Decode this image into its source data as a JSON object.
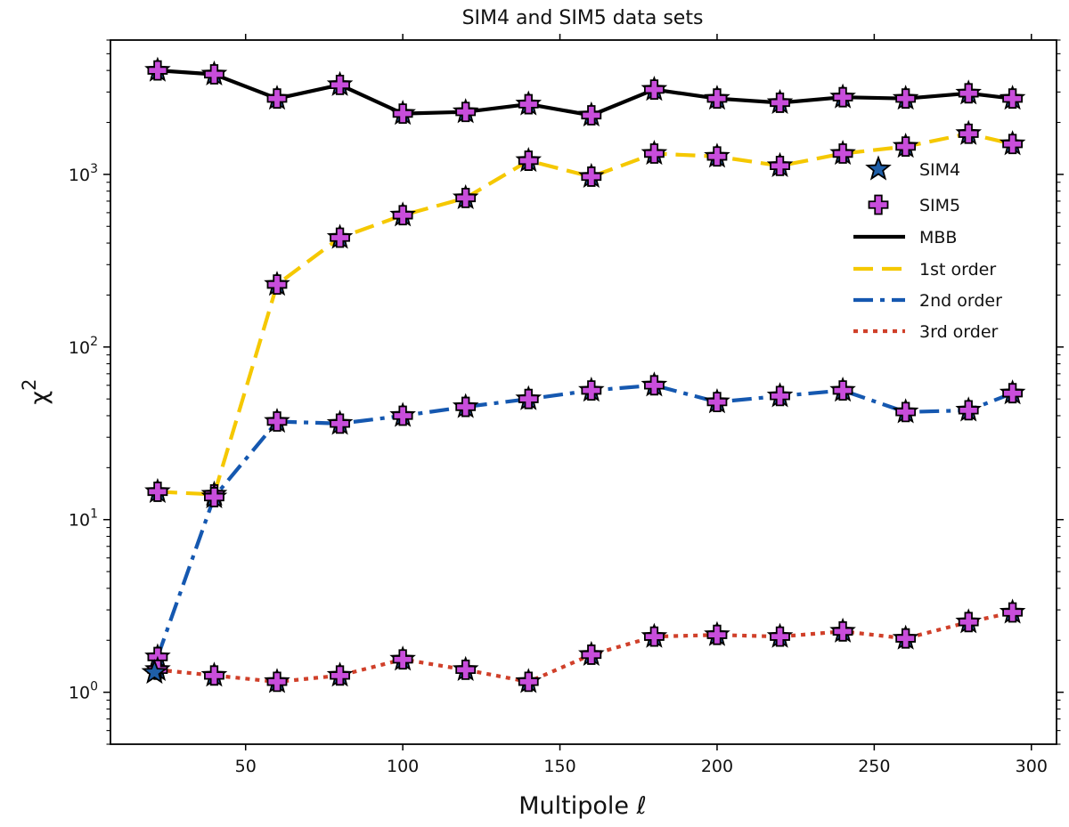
{
  "chart_data": {
    "type": "line",
    "title": "SIM4 and SIM5 data sets",
    "xlabel": "Multipole ℓ",
    "ylabel": "χ",
    "ylabel_superscript": "2",
    "x_scale": "linear",
    "y_scale": "log",
    "xlim": [
      7,
      308
    ],
    "ylim": [
      0.5,
      6000
    ],
    "x_ticks": [
      50,
      100,
      150,
      200,
      250,
      300
    ],
    "y_ticks": [
      {
        "value": 1,
        "base": "10",
        "exp": "0"
      },
      {
        "value": 10,
        "base": "10",
        "exp": "1"
      },
      {
        "value": 100,
        "base": "10",
        "exp": "2"
      },
      {
        "value": 1000,
        "base": "10",
        "exp": "3"
      }
    ],
    "grid": false,
    "legend_position": "upper-right",
    "series": [
      {
        "name": "MBB",
        "style": "solid",
        "color": "#000000",
        "points": [
          {
            "x": 22,
            "y": 4000
          },
          {
            "x": 40,
            "y": 3800
          },
          {
            "x": 60,
            "y": 2750
          },
          {
            "x": 80,
            "y": 3300
          },
          {
            "x": 100,
            "y": 2250
          },
          {
            "x": 120,
            "y": 2300
          },
          {
            "x": 140,
            "y": 2550
          },
          {
            "x": 160,
            "y": 2200
          },
          {
            "x": 180,
            "y": 3100
          },
          {
            "x": 200,
            "y": 2750
          },
          {
            "x": 220,
            "y": 2600
          },
          {
            "x": 240,
            "y": 2800
          },
          {
            "x": 260,
            "y": 2750
          },
          {
            "x": 280,
            "y": 2950
          },
          {
            "x": 294,
            "y": 2750
          }
        ]
      },
      {
        "name": "1st order",
        "style": "dashed",
        "color": "#f5c800",
        "points": [
          {
            "x": 22,
            "y": 14.5
          },
          {
            "x": 40,
            "y": 14
          },
          {
            "x": 60,
            "y": 230
          },
          {
            "x": 80,
            "y": 430
          },
          {
            "x": 100,
            "y": 580
          },
          {
            "x": 120,
            "y": 730
          },
          {
            "x": 140,
            "y": 1200
          },
          {
            "x": 160,
            "y": 970
          },
          {
            "x": 180,
            "y": 1320
          },
          {
            "x": 200,
            "y": 1270
          },
          {
            "x": 220,
            "y": 1120
          },
          {
            "x": 240,
            "y": 1320
          },
          {
            "x": 260,
            "y": 1450
          },
          {
            "x": 280,
            "y": 1720
          },
          {
            "x": 294,
            "y": 1500
          }
        ]
      },
      {
        "name": "2nd order",
        "style": "dashdot",
        "color": "#1558b0",
        "points": [
          {
            "x": 22,
            "y": 1.6
          },
          {
            "x": 40,
            "y": 13.5
          },
          {
            "x": 60,
            "y": 37
          },
          {
            "x": 80,
            "y": 36
          },
          {
            "x": 100,
            "y": 40
          },
          {
            "x": 120,
            "y": 45
          },
          {
            "x": 140,
            "y": 50
          },
          {
            "x": 160,
            "y": 56
          },
          {
            "x": 180,
            "y": 60
          },
          {
            "x": 200,
            "y": 48
          },
          {
            "x": 220,
            "y": 52
          },
          {
            "x": 240,
            "y": 56
          },
          {
            "x": 260,
            "y": 42
          },
          {
            "x": 280,
            "y": 43
          },
          {
            "x": 294,
            "y": 54
          }
        ]
      },
      {
        "name": "3rd order",
        "style": "dotted",
        "color": "#d0402a",
        "points": [
          {
            "x": 22,
            "y": 1.35
          },
          {
            "x": 40,
            "y": 1.25
          },
          {
            "x": 60,
            "y": 1.15
          },
          {
            "x": 80,
            "y": 1.25
          },
          {
            "x": 100,
            "y": 1.55
          },
          {
            "x": 120,
            "y": 1.35
          },
          {
            "x": 140,
            "y": 1.15
          },
          {
            "x": 160,
            "y": 1.65
          },
          {
            "x": 180,
            "y": 2.1
          },
          {
            "x": 200,
            "y": 2.15
          },
          {
            "x": 220,
            "y": 2.1
          },
          {
            "x": 240,
            "y": 2.25
          },
          {
            "x": 260,
            "y": 2.05
          },
          {
            "x": 280,
            "y": 2.55
          },
          {
            "x": 294,
            "y": 2.9
          }
        ]
      }
    ],
    "marker_series": [
      {
        "name": "SIM4",
        "marker": "star",
        "color": "#1f5fa8"
      },
      {
        "name": "SIM5",
        "marker": "plus",
        "color": "#c84ddb"
      }
    ],
    "extra_markers": [
      {
        "x": 21,
        "y": 1.3,
        "marker": "star"
      }
    ]
  }
}
